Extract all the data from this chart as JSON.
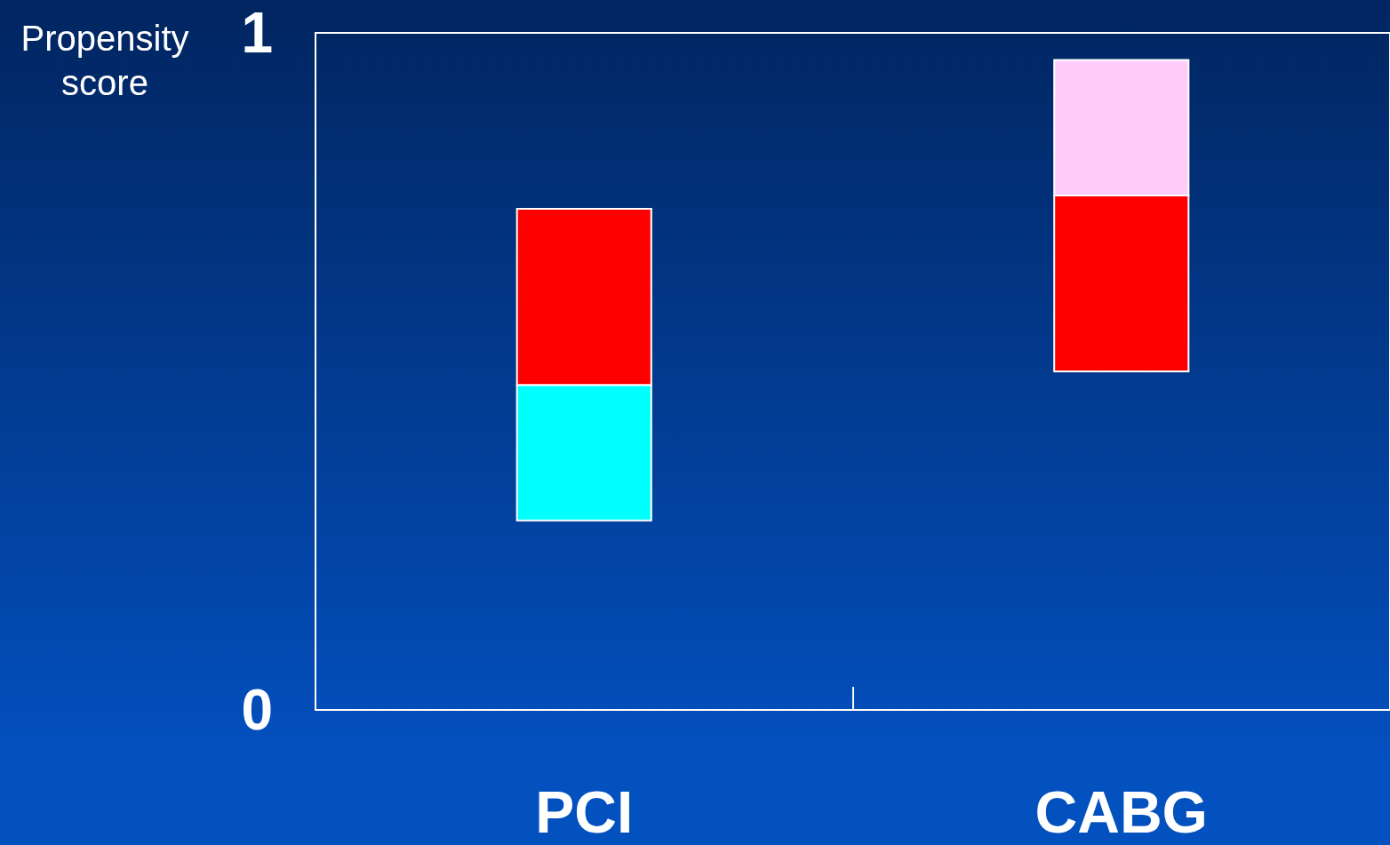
{
  "chart_data": {
    "type": "bar",
    "ylabel": "Propensity\nscore",
    "categories": [
      "PCI",
      "CABG"
    ],
    "series": [
      {
        "colors": [
          "#00ffff",
          "#ff0000"
        ],
        "base": [
          0.28,
          0.5
        ],
        "values": [
          0.2,
          0.26
        ]
      },
      {
        "colors": [
          "#ff0000",
          "#ffccfa"
        ],
        "base": [
          0.48,
          0.76
        ],
        "values": [
          0.26,
          0.2
        ]
      }
    ],
    "ylim": [
      0,
      1
    ],
    "yticks": [
      0,
      1
    ]
  }
}
